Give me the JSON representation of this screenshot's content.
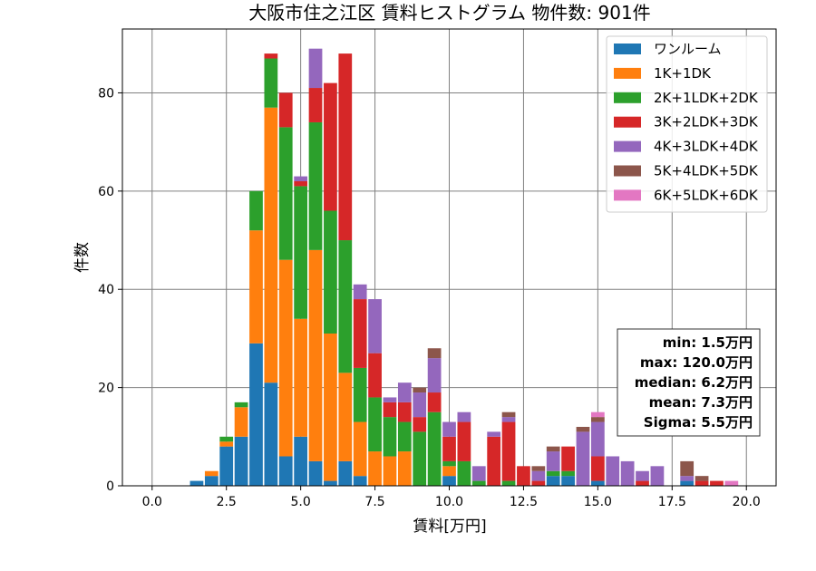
{
  "chart_data": {
    "type": "bar",
    "stacked": true,
    "title": "大阪市住之江区 賃料ヒストグラム 物件数: 901件",
    "xlabel": "賃料[万円]",
    "ylabel": "件数",
    "xlim": [
      -1.0,
      21.0
    ],
    "ylim": [
      0,
      93
    ],
    "bin_width": 0.5,
    "grid": true,
    "legend_position": "top-right",
    "x": [
      1.5,
      2.0,
      2.5,
      3.0,
      3.5,
      4.0,
      4.5,
      5.0,
      5.5,
      6.0,
      6.5,
      7.0,
      7.5,
      8.0,
      8.5,
      9.0,
      9.5,
      10.0,
      10.5,
      11.0,
      11.5,
      12.0,
      12.5,
      13.0,
      13.5,
      14.0,
      14.5,
      15.0,
      15.5,
      16.0,
      16.5,
      17.0,
      18.0,
      18.5,
      19.0,
      19.5
    ],
    "xticks": [
      "0.0",
      "2.5",
      "5.0",
      "7.5",
      "10.0",
      "12.5",
      "15.0",
      "17.5",
      "20.0"
    ],
    "yticks": [
      "0",
      "20",
      "40",
      "60",
      "80"
    ],
    "series": [
      {
        "name": "ワンルーム",
        "color": "#1f77b4",
        "values": [
          1,
          2,
          8,
          10,
          29,
          21,
          6,
          10,
          5,
          1,
          5,
          2,
          0,
          0,
          0,
          0,
          0,
          2,
          0,
          0,
          0,
          0,
          0,
          0,
          2,
          2,
          0,
          1,
          0,
          0,
          0,
          0,
          1,
          0,
          0,
          0
        ]
      },
      {
        "name": "1K+1DK",
        "color": "#ff7f0e",
        "values": [
          0,
          1,
          1,
          6,
          23,
          56,
          40,
          24,
          43,
          30,
          18,
          11,
          7,
          6,
          7,
          0,
          0,
          2,
          0,
          0,
          0,
          0,
          0,
          0,
          0,
          0,
          0,
          0,
          0,
          0,
          0,
          0,
          0,
          0,
          0,
          0
        ]
      },
      {
        "name": "2K+1LDK+2DK",
        "color": "#2ca02c",
        "values": [
          0,
          0,
          1,
          1,
          8,
          10,
          27,
          27,
          26,
          25,
          27,
          11,
          11,
          8,
          6,
          11,
          15,
          1,
          5,
          1,
          0,
          1,
          0,
          0,
          1,
          1,
          0,
          0,
          0,
          0,
          0,
          0,
          0,
          0,
          0,
          0
        ]
      },
      {
        "name": "3K+2LDK+3DK",
        "color": "#d62728",
        "values": [
          0,
          0,
          0,
          0,
          0,
          1,
          7,
          1,
          7,
          26,
          38,
          14,
          9,
          3,
          4,
          3,
          4,
          5,
          8,
          0,
          10,
          12,
          4,
          1,
          0,
          5,
          0,
          5,
          0,
          0,
          1,
          0,
          0,
          1,
          1,
          0
        ]
      },
      {
        "name": "4K+3LDK+4DK",
        "color": "#9467bd",
        "values": [
          0,
          0,
          0,
          0,
          0,
          0,
          0,
          1,
          8,
          0,
          0,
          3,
          11,
          1,
          4,
          5,
          7,
          3,
          2,
          3,
          1,
          1,
          0,
          2,
          4,
          0,
          11,
          7,
          6,
          5,
          2,
          4,
          1,
          0,
          0,
          0
        ]
      },
      {
        "name": "5K+4LDK+5DK",
        "color": "#8c564b",
        "values": [
          0,
          0,
          0,
          0,
          0,
          0,
          0,
          0,
          0,
          0,
          0,
          0,
          0,
          0,
          0,
          1,
          2,
          0,
          0,
          0,
          0,
          1,
          0,
          1,
          1,
          0,
          1,
          1,
          0,
          0,
          0,
          0,
          3,
          1,
          0,
          0
        ]
      },
      {
        "name": "6K+5LDK+6DK",
        "color": "#e377c2",
        "values": [
          0,
          0,
          0,
          0,
          0,
          0,
          0,
          0,
          0,
          0,
          0,
          0,
          0,
          0,
          0,
          0,
          0,
          0,
          0,
          0,
          0,
          0,
          0,
          0,
          0,
          0,
          0,
          1,
          0,
          0,
          0,
          0,
          0,
          0,
          0,
          1
        ]
      }
    ],
    "stats": [
      "min: 1.5万円",
      "max: 120.0万円",
      "median: 6.2万円",
      "mean: 7.3万円",
      "Sigma: 5.5万円"
    ]
  }
}
